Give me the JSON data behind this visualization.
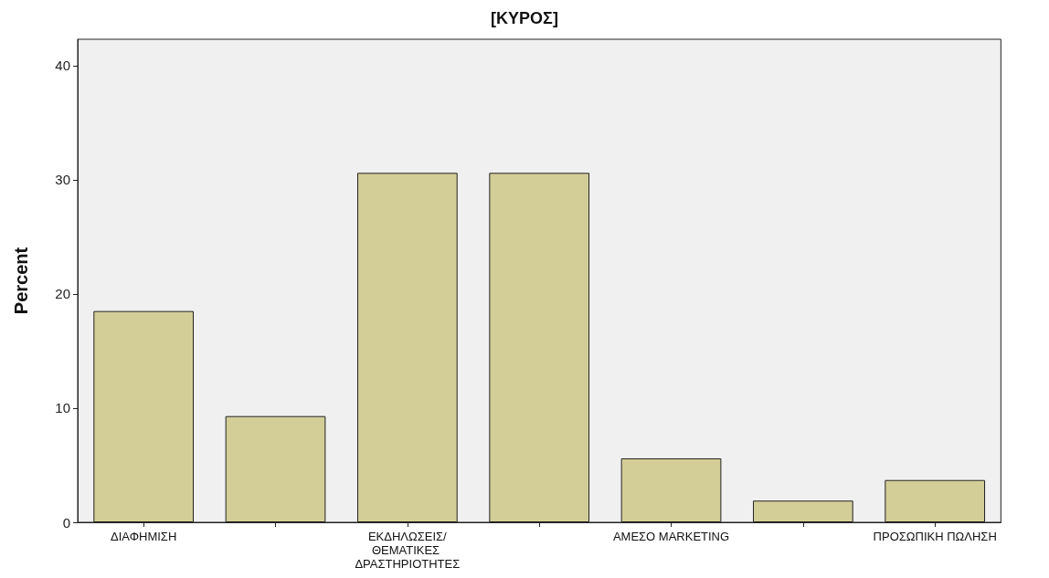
{
  "chart_data": {
    "type": "bar",
    "title": "[ΚΥΡΟΣ]",
    "ylabel": "Percent",
    "categories": [
      "ΔΙΑΦΗΜΙΣΗ",
      null,
      "ΕΚΔΗΛΩΣΕΙΣ/ΘΕΜΑΤΙΚΕΣ ΔΡΑΣΤΗΡΙΟΤΗΤΕΣ",
      null,
      "ΑΜΕΣΟ MARKETING",
      null,
      "ΠΡΟΣΩΠΙΚΗ ΠΩΛΗΣΗ"
    ],
    "values": [
      18.5,
      9.3,
      30.6,
      30.6,
      5.6,
      1.9,
      3.7
    ],
    "color": "#d3ce98",
    "ylim": [
      0,
      42.3
    ],
    "yticks": [
      0,
      10,
      20,
      30,
      40
    ],
    "grid": false
  }
}
